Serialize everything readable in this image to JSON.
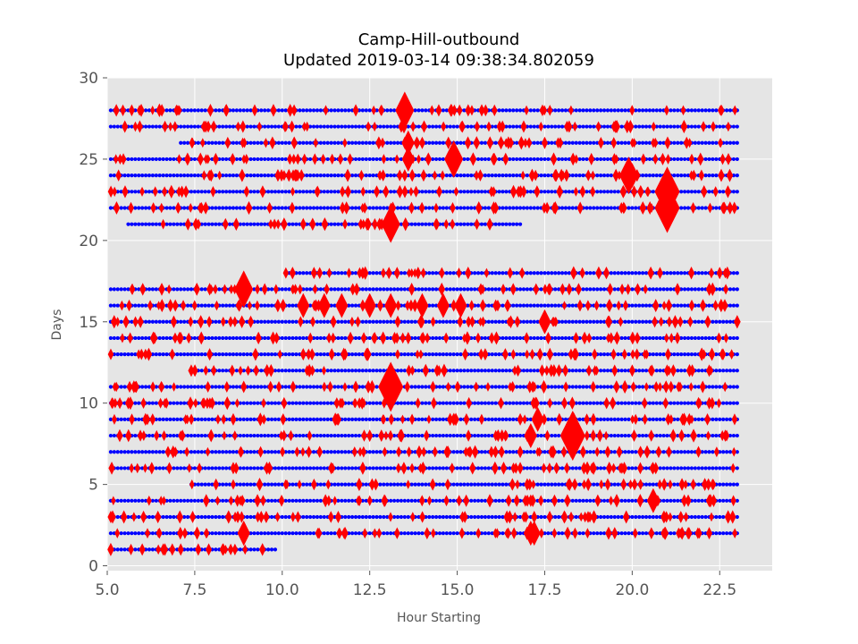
{
  "chart_data": {
    "type": "scatter",
    "title": "Camp-Hill-outbound",
    "subtitle": "Updated 2019-03-14 09:38:34.802059",
    "xlabel": "Hour Starting",
    "ylabel": "Days",
    "xlim": [
      5.0,
      24.0
    ],
    "ylim": [
      -0.3,
      30.0
    ],
    "xticks": [
      5.0,
      7.5,
      10.0,
      12.5,
      15.0,
      17.5,
      20.0,
      22.5
    ],
    "xtick_labels": [
      "5.0",
      "7.5",
      "10.0",
      "12.5",
      "15.0",
      "17.5",
      "20.0",
      "22.5"
    ],
    "yticks": [
      0,
      5,
      10,
      15,
      20,
      25,
      30
    ],
    "ytick_labels": [
      "0",
      "5",
      "10",
      "15",
      "20",
      "25",
      "30"
    ],
    "grid": true,
    "background": "#e5e5e5",
    "colors": {
      "services": "#0000ff",
      "delays": "#ff0000"
    },
    "series": [
      {
        "marker": "point",
        "rows": [
          {
            "day": 1,
            "xmin": 5.1,
            "xmax": 9.8
          },
          {
            "day": 2,
            "xmin": 5.1,
            "xmax": 23.0
          },
          {
            "day": 3,
            "xmin": 5.1,
            "xmax": 23.0
          },
          {
            "day": 4,
            "xmin": 5.1,
            "xmax": 23.0
          },
          {
            "day": 5,
            "xmin": 7.4,
            "xmax": 23.0
          },
          {
            "day": 6,
            "xmin": 5.1,
            "xmax": 23.0
          },
          {
            "day": 7,
            "xmin": 5.1,
            "xmax": 23.0
          },
          {
            "day": 8,
            "xmin": 5.1,
            "xmax": 23.0
          },
          {
            "day": 9,
            "xmin": 5.1,
            "xmax": 23.0
          },
          {
            "day": 10,
            "xmin": 5.1,
            "xmax": 23.0
          },
          {
            "day": 11,
            "xmin": 5.1,
            "xmax": 23.0
          },
          {
            "day": 12,
            "xmin": 7.5,
            "xmax": 23.0
          },
          {
            "day": 13,
            "xmin": 5.1,
            "xmax": 23.0
          },
          {
            "day": 14,
            "xmin": 5.1,
            "xmax": 23.0
          },
          {
            "day": 15,
            "xmin": 5.1,
            "xmax": 23.0
          },
          {
            "day": 16,
            "xmin": 5.1,
            "xmax": 23.0
          },
          {
            "day": 17,
            "xmin": 5.1,
            "xmax": 23.0
          },
          {
            "day": 18,
            "xmin": 10.1,
            "xmax": 23.0
          },
          {
            "day": 21,
            "xmin": 5.6,
            "xmax": 16.8
          },
          {
            "day": 22,
            "xmin": 5.1,
            "xmax": 23.0
          },
          {
            "day": 23,
            "xmin": 5.1,
            "xmax": 23.0
          },
          {
            "day": 24,
            "xmin": 5.1,
            "xmax": 23.0
          },
          {
            "day": 25,
            "xmin": 5.1,
            "xmax": 23.0
          },
          {
            "day": 26,
            "xmin": 7.1,
            "xmax": 23.0
          },
          {
            "day": 27,
            "xmin": 5.1,
            "xmax": 23.0
          },
          {
            "day": 28,
            "xmin": 5.1,
            "xmax": 23.0
          }
        ]
      },
      {
        "marker": "diamond",
        "small_markers_per_day": {
          "1": [
            [
              6.0,
              1
            ],
            [
              6.6,
              1
            ],
            [
              7.1,
              1
            ],
            [
              7.6,
              1
            ],
            [
              7.9,
              1
            ],
            [
              8.3,
              1
            ]
          ],
          "2": [
            [
              8.9,
              2
            ],
            [
              17.2,
              2
            ],
            [
              19.5,
              1
            ],
            [
              21.6,
              1
            ],
            [
              22.2,
              1
            ]
          ],
          "3": [
            [
              5.1,
              1
            ],
            [
              9.4,
              1
            ],
            [
              11.6,
              1
            ],
            [
              17.2,
              1
            ],
            [
              18.9,
              1
            ]
          ],
          "4": [
            [
              16.7,
              1
            ],
            [
              17.1,
              1
            ],
            [
              20.6,
              1
            ],
            [
              21.6,
              1
            ]
          ],
          "5": [
            [
              14.3,
              1
            ],
            [
              17.0,
              1
            ],
            [
              19.3,
              1
            ]
          ],
          "6": [
            [
              8.6,
              1
            ],
            [
              11.4,
              1
            ],
            [
              16.8,
              1
            ]
          ],
          "7": [
            [
              14.7,
              1
            ],
            [
              16.8,
              1
            ],
            [
              19.3,
              1
            ]
          ],
          "8": [
            [
              18.3,
              2
            ],
            [
              17.0,
              1
            ],
            [
              12.5,
              1
            ]
          ],
          "9": [
            [
              8.6,
              1
            ],
            [
              16.8,
              1
            ],
            [
              17.3,
              1
            ]
          ],
          "10": [
            [
              5.6,
              1
            ],
            [
              8.0,
              1
            ],
            [
              22.2,
              1
            ]
          ],
          "11": [
            [
              13.1,
              2
            ],
            [
              8.9,
              1
            ],
            [
              12.1,
              1
            ]
          ],
          "12": [
            [
              7.4,
              1
            ],
            [
              20.0,
              1
            ],
            [
              22.2,
              1
            ]
          ],
          "13": [
            [
              15.8,
              1
            ],
            [
              10.6,
              1
            ]
          ],
          "14": [
            [
              7.1,
              1
            ],
            [
              13.6,
              1
            ],
            [
              17.6,
              1
            ]
          ],
          "15": [
            [
              17.5,
              1
            ],
            [
              9.1,
              1
            ],
            [
              13.3,
              1
            ]
          ],
          "16": [
            [
              12.3,
              1
            ],
            [
              14.9,
              1
            ],
            [
              16.1,
              1
            ],
            [
              12.8,
              1
            ]
          ],
          "17": [
            [
              8.9,
              2
            ],
            [
              16.6,
              1
            ],
            [
              18.2,
              1
            ]
          ],
          "18": [
            [
              22.5,
              1
            ],
            [
              12.3,
              1
            ]
          ],
          "21": [
            [
              13.1,
              1
            ],
            [
              10.6,
              1
            ],
            [
              14.4,
              1
            ]
          ],
          "22": [
            [
              21.0,
              2
            ],
            [
              16.1,
              1
            ],
            [
              22.6,
              1
            ]
          ],
          "23": [
            [
              21.0,
              2
            ],
            [
              12.7,
              1
            ],
            [
              16.9,
              1
            ]
          ],
          "24": [
            [
              20.0,
              2
            ],
            [
              13.5,
              1
            ],
            [
              10.4,
              1
            ]
          ],
          "25": [
            [
              14.9,
              2
            ],
            [
              13.6,
              1
            ],
            [
              8.1,
              1
            ]
          ],
          "26": [
            [
              13.5,
              1
            ],
            [
              14.0,
              1
            ],
            [
              17.5,
              1
            ]
          ],
          "27": [
            [
              16.9,
              1
            ],
            [
              13.4,
              1
            ],
            [
              18.2,
              1
            ]
          ],
          "28": [
            [
              13.5,
              2
            ],
            [
              12.1,
              1
            ],
            [
              15.7,
              1
            ]
          ]
        },
        "large_markers": [
          {
            "x": 13.5,
            "day": 28,
            "size": 3
          },
          {
            "x": 13.6,
            "day": 26,
            "size": 2
          },
          {
            "x": 13.6,
            "day": 25,
            "size": 2
          },
          {
            "x": 14.9,
            "day": 25,
            "size": 3
          },
          {
            "x": 19.9,
            "day": 24,
            "size": 3
          },
          {
            "x": 21.0,
            "day": 23,
            "size": 4
          },
          {
            "x": 21.0,
            "day": 22,
            "size": 4
          },
          {
            "x": 13.1,
            "day": 21,
            "size": 3
          },
          {
            "x": 8.9,
            "day": 17,
            "size": 3
          },
          {
            "x": 10.6,
            "day": 16,
            "size": 2
          },
          {
            "x": 11.2,
            "day": 16,
            "size": 2
          },
          {
            "x": 11.7,
            "day": 16,
            "size": 2
          },
          {
            "x": 12.5,
            "day": 16,
            "size": 2
          },
          {
            "x": 13.1,
            "day": 16,
            "size": 2
          },
          {
            "x": 14.0,
            "day": 16,
            "size": 2
          },
          {
            "x": 14.6,
            "day": 16,
            "size": 2
          },
          {
            "x": 15.1,
            "day": 16,
            "size": 2
          },
          {
            "x": 17.5,
            "day": 15,
            "size": 2
          },
          {
            "x": 13.1,
            "day": 11,
            "size": 4
          },
          {
            "x": 17.3,
            "day": 9,
            "size": 2
          },
          {
            "x": 18.3,
            "day": 8,
            "size": 4
          },
          {
            "x": 17.1,
            "day": 8,
            "size": 2
          },
          {
            "x": 20.6,
            "day": 4,
            "size": 2
          },
          {
            "x": 17.1,
            "day": 2,
            "size": 2
          },
          {
            "x": 8.9,
            "day": 2,
            "size": 2
          }
        ]
      }
    ]
  }
}
